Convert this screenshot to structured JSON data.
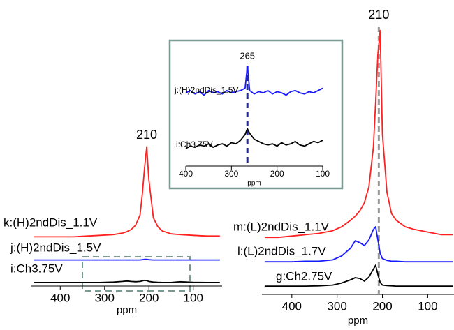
{
  "chart_data": [
    {
      "type": "line",
      "x_label": "ppm",
      "x": [
        460,
        430,
        400,
        370,
        340,
        310,
        280,
        260,
        250,
        240,
        230,
        220,
        215,
        210,
        205,
        200,
        190,
        180,
        170,
        150,
        130,
        100,
        70,
        40
      ],
      "xlim": [
        465,
        35
      ],
      "xticks": [
        400,
        300,
        200,
        100
      ],
      "ylim": [
        0,
        100
      ],
      "series": [
        {
          "name": "k:(H)2ndDis_1.1V",
          "color": "#ff2020",
          "values": [
            33,
            33,
            33,
            33,
            33.5,
            34,
            34.5,
            35.5,
            36.5,
            38,
            41,
            48,
            62,
            80,
            95,
            72,
            46,
            40,
            37,
            35,
            34.5,
            34,
            33.5,
            33.5
          ]
        },
        {
          "name": "j:(H)2ndDis_1.5V",
          "color": "#1a1aff",
          "values": [
            17,
            17,
            17,
            17,
            17,
            17,
            17,
            17,
            17,
            17,
            17,
            17,
            17.2,
            17.5,
            17.5,
            17.2,
            17,
            17,
            17,
            17,
            17,
            17,
            17,
            17
          ]
        },
        {
          "name": "i:Ch3.75V",
          "color": "#000000",
          "values": [
            1.5,
            1.5,
            1.5,
            1.5,
            1.5,
            1.5,
            1.8,
            2.2,
            2.5,
            2.2,
            2,
            2.2,
            2.6,
            3,
            2.8,
            2.2,
            1.8,
            1.6,
            1.5,
            1.5,
            2,
            1.6,
            1.5,
            1.5
          ]
        }
      ],
      "annotations": [
        {
          "text": "210",
          "x": 205
        }
      ]
    },
    {
      "type": "line",
      "x_label": "ppm",
      "x": [
        460,
        430,
        400,
        370,
        340,
        310,
        290,
        270,
        260,
        250,
        240,
        230,
        220,
        215,
        210,
        205,
        200,
        190,
        180,
        170,
        150,
        130,
        100,
        70,
        45
      ],
      "xlim": [
        466,
        42
      ],
      "xticks": [
        400,
        300,
        200,
        100
      ],
      "ylim": [
        0,
        100
      ],
      "series": [
        {
          "name": "m:(L)2ndDis_1.1V",
          "color": "#ff2020",
          "values": [
            21,
            21,
            21.5,
            22,
            22.5,
            23.5,
            25,
            27.5,
            29,
            31,
            34,
            40,
            55,
            72,
            90,
            99,
            60,
            38,
            30,
            27.5,
            25,
            24,
            23,
            22,
            22
          ]
        },
        {
          "name": "l:(L)2ndDis_1.7V",
          "color": "#1a1aff",
          "values": [
            11.8,
            11.8,
            11.8,
            12,
            12,
            12.5,
            14,
            17,
            19.7,
            19,
            17.9,
            20,
            24,
            25,
            20,
            15,
            13,
            12.3,
            12,
            12,
            11.8,
            11.8,
            11.8,
            11.8,
            11.8
          ]
        },
        {
          "name": "g:Ch2.75V",
          "color": "#000000",
          "values": [
            2.6,
            2.6,
            2.6,
            2.6,
            2.7,
            3,
            3.8,
            5,
            5.8,
            5.5,
            4.5,
            6,
            9,
            10.5,
            7,
            4,
            3,
            2.8,
            2.7,
            2.6,
            2.6,
            2.6,
            2.6,
            2.6,
            2.6
          ]
        }
      ],
      "annotations": [
        {
          "text": "210",
          "x": 208,
          "line_color": "#999999"
        }
      ]
    },
    {
      "type": "line",
      "x_label": "ppm",
      "x": [
        400,
        390,
        380,
        370,
        360,
        350,
        340,
        330,
        320,
        310,
        300,
        290,
        280,
        270,
        265,
        260,
        250,
        240,
        230,
        220,
        210,
        200,
        190,
        180,
        170,
        160,
        150,
        140,
        130,
        120,
        110,
        100
      ],
      "xlim": [
        400,
        100
      ],
      "xticks": [
        400,
        300,
        200,
        100
      ],
      "ylim": [
        0,
        100
      ],
      "series": [
        {
          "name": "j:(H)2ndDis_1.5V",
          "color": "#1a1aff",
          "values": [
            62,
            64,
            61,
            63,
            60,
            64,
            62,
            63,
            61,
            64,
            62,
            63,
            64,
            66,
            85,
            64,
            61,
            63,
            62,
            64,
            61,
            63,
            62,
            60,
            63,
            64,
            62,
            61,
            63,
            62,
            64,
            66
          ]
        },
        {
          "name": "i:Ch3.75V",
          "color": "#000000",
          "values": [
            14,
            16,
            15,
            17,
            16,
            18,
            15,
            17,
            18,
            16,
            19,
            18,
            21,
            26,
            31,
            27,
            22,
            20,
            18,
            17,
            18,
            16,
            19,
            17,
            18,
            20,
            17,
            16,
            18,
            20,
            19,
            21
          ]
        }
      ],
      "annotations": [
        {
          "text": "265",
          "x": 265,
          "line_color": "#1f2a8c"
        }
      ]
    }
  ]
}
